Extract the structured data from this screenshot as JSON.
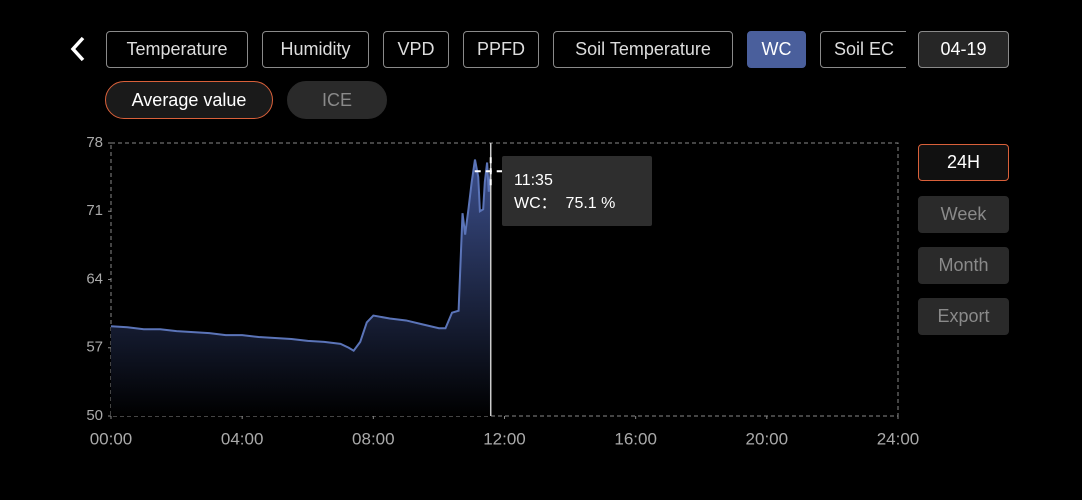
{
  "tabs": [
    "Temperature",
    "Humidity",
    "VPD",
    "PPFD",
    "Soil Temperature",
    "WC",
    "Soil EC"
  ],
  "selected_tab": 5,
  "date": "04-19",
  "modes": [
    "Average value",
    "ICE"
  ],
  "selected_mode": 0,
  "ranges": [
    "24H",
    "Week",
    "Month"
  ],
  "selected_range": 0,
  "export": "Export",
  "tooltip": {
    "time": "11:35",
    "text": "WC：  75.1 %"
  },
  "chart_data": {
    "type": "area",
    "x": [
      0,
      0.5,
      1,
      1.5,
      2,
      2.5,
      3,
      3.5,
      4,
      4.5,
      5,
      5.5,
      6,
      6.5,
      7,
      7.25,
      7.4,
      7.6,
      7.8,
      8.0,
      8.5,
      9,
      9.5,
      10,
      10.2,
      10.4,
      10.6,
      10.72,
      10.8,
      10.9,
      11.0,
      11.1,
      11.2,
      11.25,
      11.35,
      11.4,
      11.47,
      11.52,
      11.58
    ],
    "series": [
      {
        "name": "WC",
        "color": "#5b74b8",
        "values": [
          59.2,
          59.1,
          58.9,
          58.9,
          58.7,
          58.6,
          58.5,
          58.3,
          58.3,
          58.1,
          58.0,
          57.9,
          57.7,
          57.6,
          57.4,
          57.0,
          56.7,
          57.6,
          59.6,
          60.3,
          60.0,
          59.8,
          59.4,
          59.0,
          59.0,
          60.6,
          60.8,
          70.8,
          68.6,
          71.2,
          74.0,
          76.3,
          74.5,
          71.0,
          71.2,
          74.0,
          76.0,
          73.0,
          75.1
        ]
      }
    ],
    "xlim": [
      0,
      24
    ],
    "xticks": [
      {
        "value": 0,
        "label": "00:00"
      },
      {
        "value": 4,
        "label": "04:00"
      },
      {
        "value": 8,
        "label": "08:00"
      },
      {
        "value": 12,
        "label": "12:00"
      },
      {
        "value": 16,
        "label": "16:00"
      },
      {
        "value": 20,
        "label": "20:00"
      },
      {
        "value": 24,
        "label": "24:00"
      }
    ],
    "ylim": [
      50,
      78
    ],
    "yticks": [
      50,
      57,
      64,
      71,
      78
    ]
  }
}
